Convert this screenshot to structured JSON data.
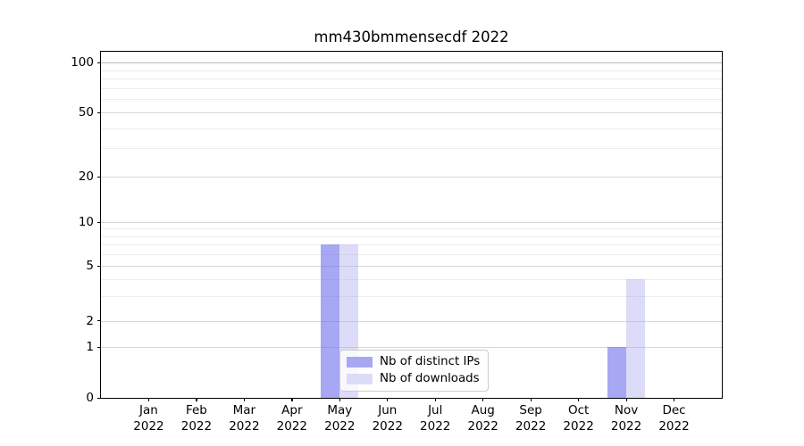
{
  "title": "mm430bmmensecdf 2022",
  "chart_data": {
    "type": "bar",
    "title": "mm430bmmensecdf 2022",
    "categories": [
      "Jan",
      "Feb",
      "Mar",
      "Apr",
      "May",
      "Jun",
      "Jul",
      "Aug",
      "Sep",
      "Oct",
      "Nov",
      "Dec"
    ],
    "category_year": "2022",
    "series": [
      {
        "name": "Nb of distinct IPs",
        "color": "rgba(113,113,238,0.62)",
        "solid_color": "#a8a8f2",
        "values": [
          0,
          0,
          0,
          0,
          7,
          0,
          0,
          0,
          0,
          0,
          1,
          0
        ]
      },
      {
        "name": "Nb of downloads",
        "color": "rgba(177,177,241,0.45)",
        "solid_color": "#dcdcf8",
        "values": [
          0,
          0,
          0,
          0,
          7,
          0,
          0,
          0,
          0,
          0,
          4,
          0
        ]
      }
    ],
    "xlabel": "",
    "ylabel": "",
    "y_axis": {
      "scale": "symlog-like",
      "ticks": [
        0,
        1,
        2,
        5,
        10,
        20,
        50,
        100
      ],
      "minor_ticks": [
        3,
        4,
        6,
        7,
        8,
        9,
        30,
        40,
        60,
        70,
        80,
        90
      ],
      "range_top_value": 115
    },
    "grid": true,
    "legend_position": "lower-center",
    "colors": {
      "grid_major_top": "#bcbcbc",
      "grid_major": "#d6d6d6",
      "grid_minor": "#ececec",
      "spine": "#000000",
      "text": "#000000",
      "legend_border": "#cccccc"
    }
  }
}
